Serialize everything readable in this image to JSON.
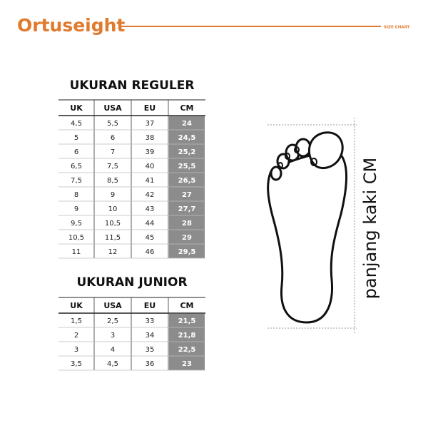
{
  "header": {
    "brand": "Ortuseight",
    "label": "SIZE CHART"
  },
  "regular": {
    "title": "UKURAN REGULER",
    "columns": [
      "UK",
      "USA",
      "EU",
      "CM"
    ],
    "rows": [
      [
        "4,5",
        "5,5",
        "37",
        "24"
      ],
      [
        "5",
        "6",
        "38",
        "24,5"
      ],
      [
        "6",
        "7",
        "39",
        "25,2"
      ],
      [
        "6,5",
        "7,5",
        "40",
        "25,5"
      ],
      [
        "7,5",
        "8,5",
        "41",
        "26,5"
      ],
      [
        "8",
        "9",
        "42",
        "27"
      ],
      [
        "9",
        "10",
        "43",
        "27,7"
      ],
      [
        "9,5",
        "10,5",
        "44",
        "28"
      ],
      [
        "10,5",
        "11,5",
        "45",
        "29"
      ],
      [
        "11",
        "12",
        "46",
        "29,5"
      ]
    ]
  },
  "junior": {
    "title": "UKURAN JUNIOR",
    "columns": [
      "UK",
      "USA",
      "EU",
      "CM"
    ],
    "rows": [
      [
        "1,5",
        "2,5",
        "33",
        "21,5"
      ],
      [
        "2",
        "3",
        "34",
        "21,8"
      ],
      [
        "3",
        "4",
        "35",
        "22,5"
      ],
      [
        "3,5",
        "4,5",
        "36",
        "23"
      ]
    ]
  },
  "foot": {
    "label": "panjang kaki CM"
  }
}
